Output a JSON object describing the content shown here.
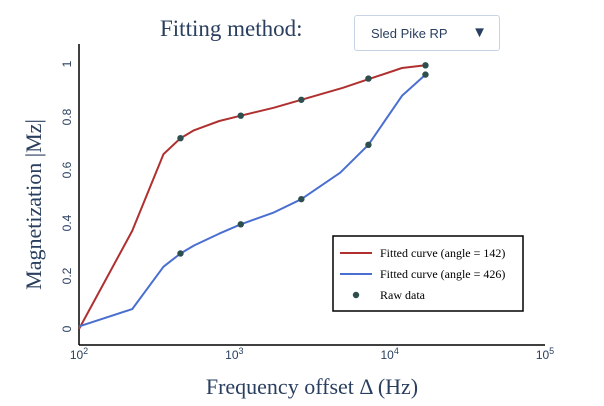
{
  "controls": {
    "method_label": "Fitting method:",
    "method_value": "Sled Pike RP",
    "dropdown_arrow_icon": "triangle-down-icon"
  },
  "chart_data": {
    "type": "line",
    "xlabel": "Frequency offset Δ (Hz)",
    "ylabel": "Magnetization |Mz|",
    "x_scale": "log",
    "xlim": [
      100,
      100000
    ],
    "ylim": [
      0,
      1.05
    ],
    "x_ticks": [
      {
        "value": 100,
        "base": "10",
        "exp": "2"
      },
      {
        "value": 1000,
        "base": "10",
        "exp": "3"
      },
      {
        "value": 10000,
        "base": "10",
        "exp": "4"
      },
      {
        "value": 100000,
        "base": "10",
        "exp": "5"
      }
    ],
    "y_ticks": [
      {
        "value": 0,
        "label": "0"
      },
      {
        "value": 0.2,
        "label": "0.2"
      },
      {
        "value": 0.4,
        "label": "0.4"
      },
      {
        "value": 0.6,
        "label": "0.6"
      },
      {
        "value": 0.8,
        "label": "0.8"
      },
      {
        "value": 1,
        "label": "1"
      }
    ],
    "grid": false,
    "legend_position": "bottom-right",
    "series": [
      {
        "name": "Fitted curve (angle = 142)",
        "color": "#b03030",
        "x": [
          100,
          220,
          350,
          450,
          550,
          800,
          1100,
          1800,
          2700,
          5000,
          7500,
          12000,
          17000
        ],
        "y": [
          0.0,
          0.37,
          0.66,
          0.72,
          0.75,
          0.785,
          0.805,
          0.835,
          0.865,
          0.91,
          0.945,
          0.985,
          0.995
        ]
      },
      {
        "name": "Fitted curve (angle = 426)",
        "color": "#4a6fd0",
        "x": [
          100,
          220,
          350,
          450,
          550,
          800,
          1100,
          1800,
          2700,
          4800,
          7300,
          12000,
          17000
        ],
        "y": [
          0.01,
          0.075,
          0.235,
          0.285,
          0.315,
          0.36,
          0.395,
          0.44,
          0.49,
          0.59,
          0.695,
          0.88,
          0.96
        ]
      }
    ],
    "raw_data": {
      "name": "Raw data",
      "color": "#2f4f4f",
      "x": [
        450,
        1100,
        2700,
        7300,
        17000,
        450,
        1100,
        2700,
        7300,
        17000
      ],
      "y": [
        0.72,
        0.805,
        0.865,
        0.945,
        0.995,
        0.285,
        0.395,
        0.49,
        0.695,
        0.96
      ]
    }
  }
}
